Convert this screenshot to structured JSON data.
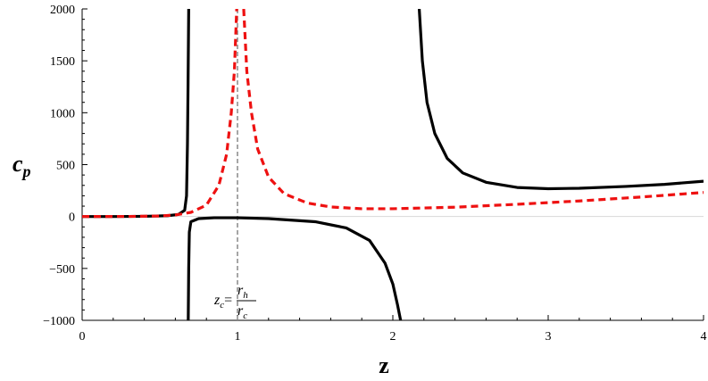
{
  "chart_data": {
    "type": "line",
    "title": "",
    "xlabel": "z",
    "ylabel_main": "c",
    "ylabel_sub": "p",
    "xlim": [
      0,
      4
    ],
    "ylim": [
      -1000,
      2000
    ],
    "x_ticks": [
      0,
      1,
      2,
      3,
      4
    ],
    "x_tick_labels": [
      "0",
      "1",
      "2",
      "3",
      "4"
    ],
    "y_ticks": [
      -1000,
      -500,
      0,
      500,
      1000,
      1500,
      2000
    ],
    "y_tick_labels": [
      "−1000",
      "−500",
      "0",
      "500",
      "1000",
      "1500",
      "2000"
    ],
    "grid": false,
    "legend": "none",
    "vline": {
      "x": 1,
      "style": "dashed",
      "color": "#888888"
    },
    "annotation": {
      "zc": "z",
      "zc_sub": "c",
      "eq": "=",
      "num": "r",
      "num_sub": "h",
      "den": "r",
      "den_sub": "c",
      "x": 1,
      "y": -750
    },
    "series": [
      {
        "style": "solid",
        "color": "#000000",
        "segments": [
          [
            [
              0,
              0
            ],
            [
              0.2,
              0
            ],
            [
              0.4,
              2
            ],
            [
              0.55,
              8
            ],
            [
              0.62,
              20
            ],
            [
              0.66,
              60
            ],
            [
              0.672,
              200
            ],
            [
              0.678,
              700
            ],
            [
              0.682,
              1300
            ],
            [
              0.686,
              2000
            ]
          ],
          [
            [
              0.683,
              -1000
            ],
            [
              0.686,
              -500
            ],
            [
              0.69,
              -150
            ],
            [
              0.7,
              -50
            ],
            [
              0.75,
              -20
            ],
            [
              0.85,
              -12
            ],
            [
              1.0,
              -12
            ],
            [
              1.2,
              -20
            ],
            [
              1.5,
              -50
            ],
            [
              1.7,
              -110
            ],
            [
              1.85,
              -230
            ],
            [
              1.95,
              -450
            ],
            [
              2.0,
              -650
            ],
            [
              2.03,
              -850
            ],
            [
              2.05,
              -1000
            ]
          ],
          [
            [
              2.17,
              2000
            ],
            [
              2.19,
              1500
            ],
            [
              2.22,
              1100
            ],
            [
              2.27,
              800
            ],
            [
              2.35,
              560
            ],
            [
              2.45,
              420
            ],
            [
              2.6,
              330
            ],
            [
              2.8,
              280
            ],
            [
              3.0,
              268
            ],
            [
              3.2,
              272
            ],
            [
              3.5,
              290
            ],
            [
              3.75,
              310
            ],
            [
              4.0,
              340
            ]
          ]
        ]
      },
      {
        "style": "dashed",
        "color": "#ee1111",
        "segments": [
          [
            [
              0,
              0
            ],
            [
              0.3,
              1
            ],
            [
              0.5,
              5
            ],
            [
              0.6,
              15
            ],
            [
              0.7,
              40
            ],
            [
              0.8,
              110
            ],
            [
              0.88,
              300
            ],
            [
              0.93,
              600
            ],
            [
              0.96,
              1000
            ],
            [
              0.98,
              1400
            ],
            [
              0.995,
              2000
            ]
          ],
          [
            [
              1.04,
              2000
            ],
            [
              1.06,
              1400
            ],
            [
              1.09,
              1000
            ],
            [
              1.13,
              650
            ],
            [
              1.2,
              380
            ],
            [
              1.3,
              220
            ],
            [
              1.45,
              130
            ],
            [
              1.6,
              92
            ],
            [
              1.8,
              75
            ],
            [
              2.0,
              75
            ],
            [
              2.4,
              90
            ],
            [
              2.8,
              118
            ],
            [
              3.2,
              150
            ],
            [
              3.6,
              188
            ],
            [
              4.0,
              232
            ]
          ]
        ]
      }
    ]
  }
}
